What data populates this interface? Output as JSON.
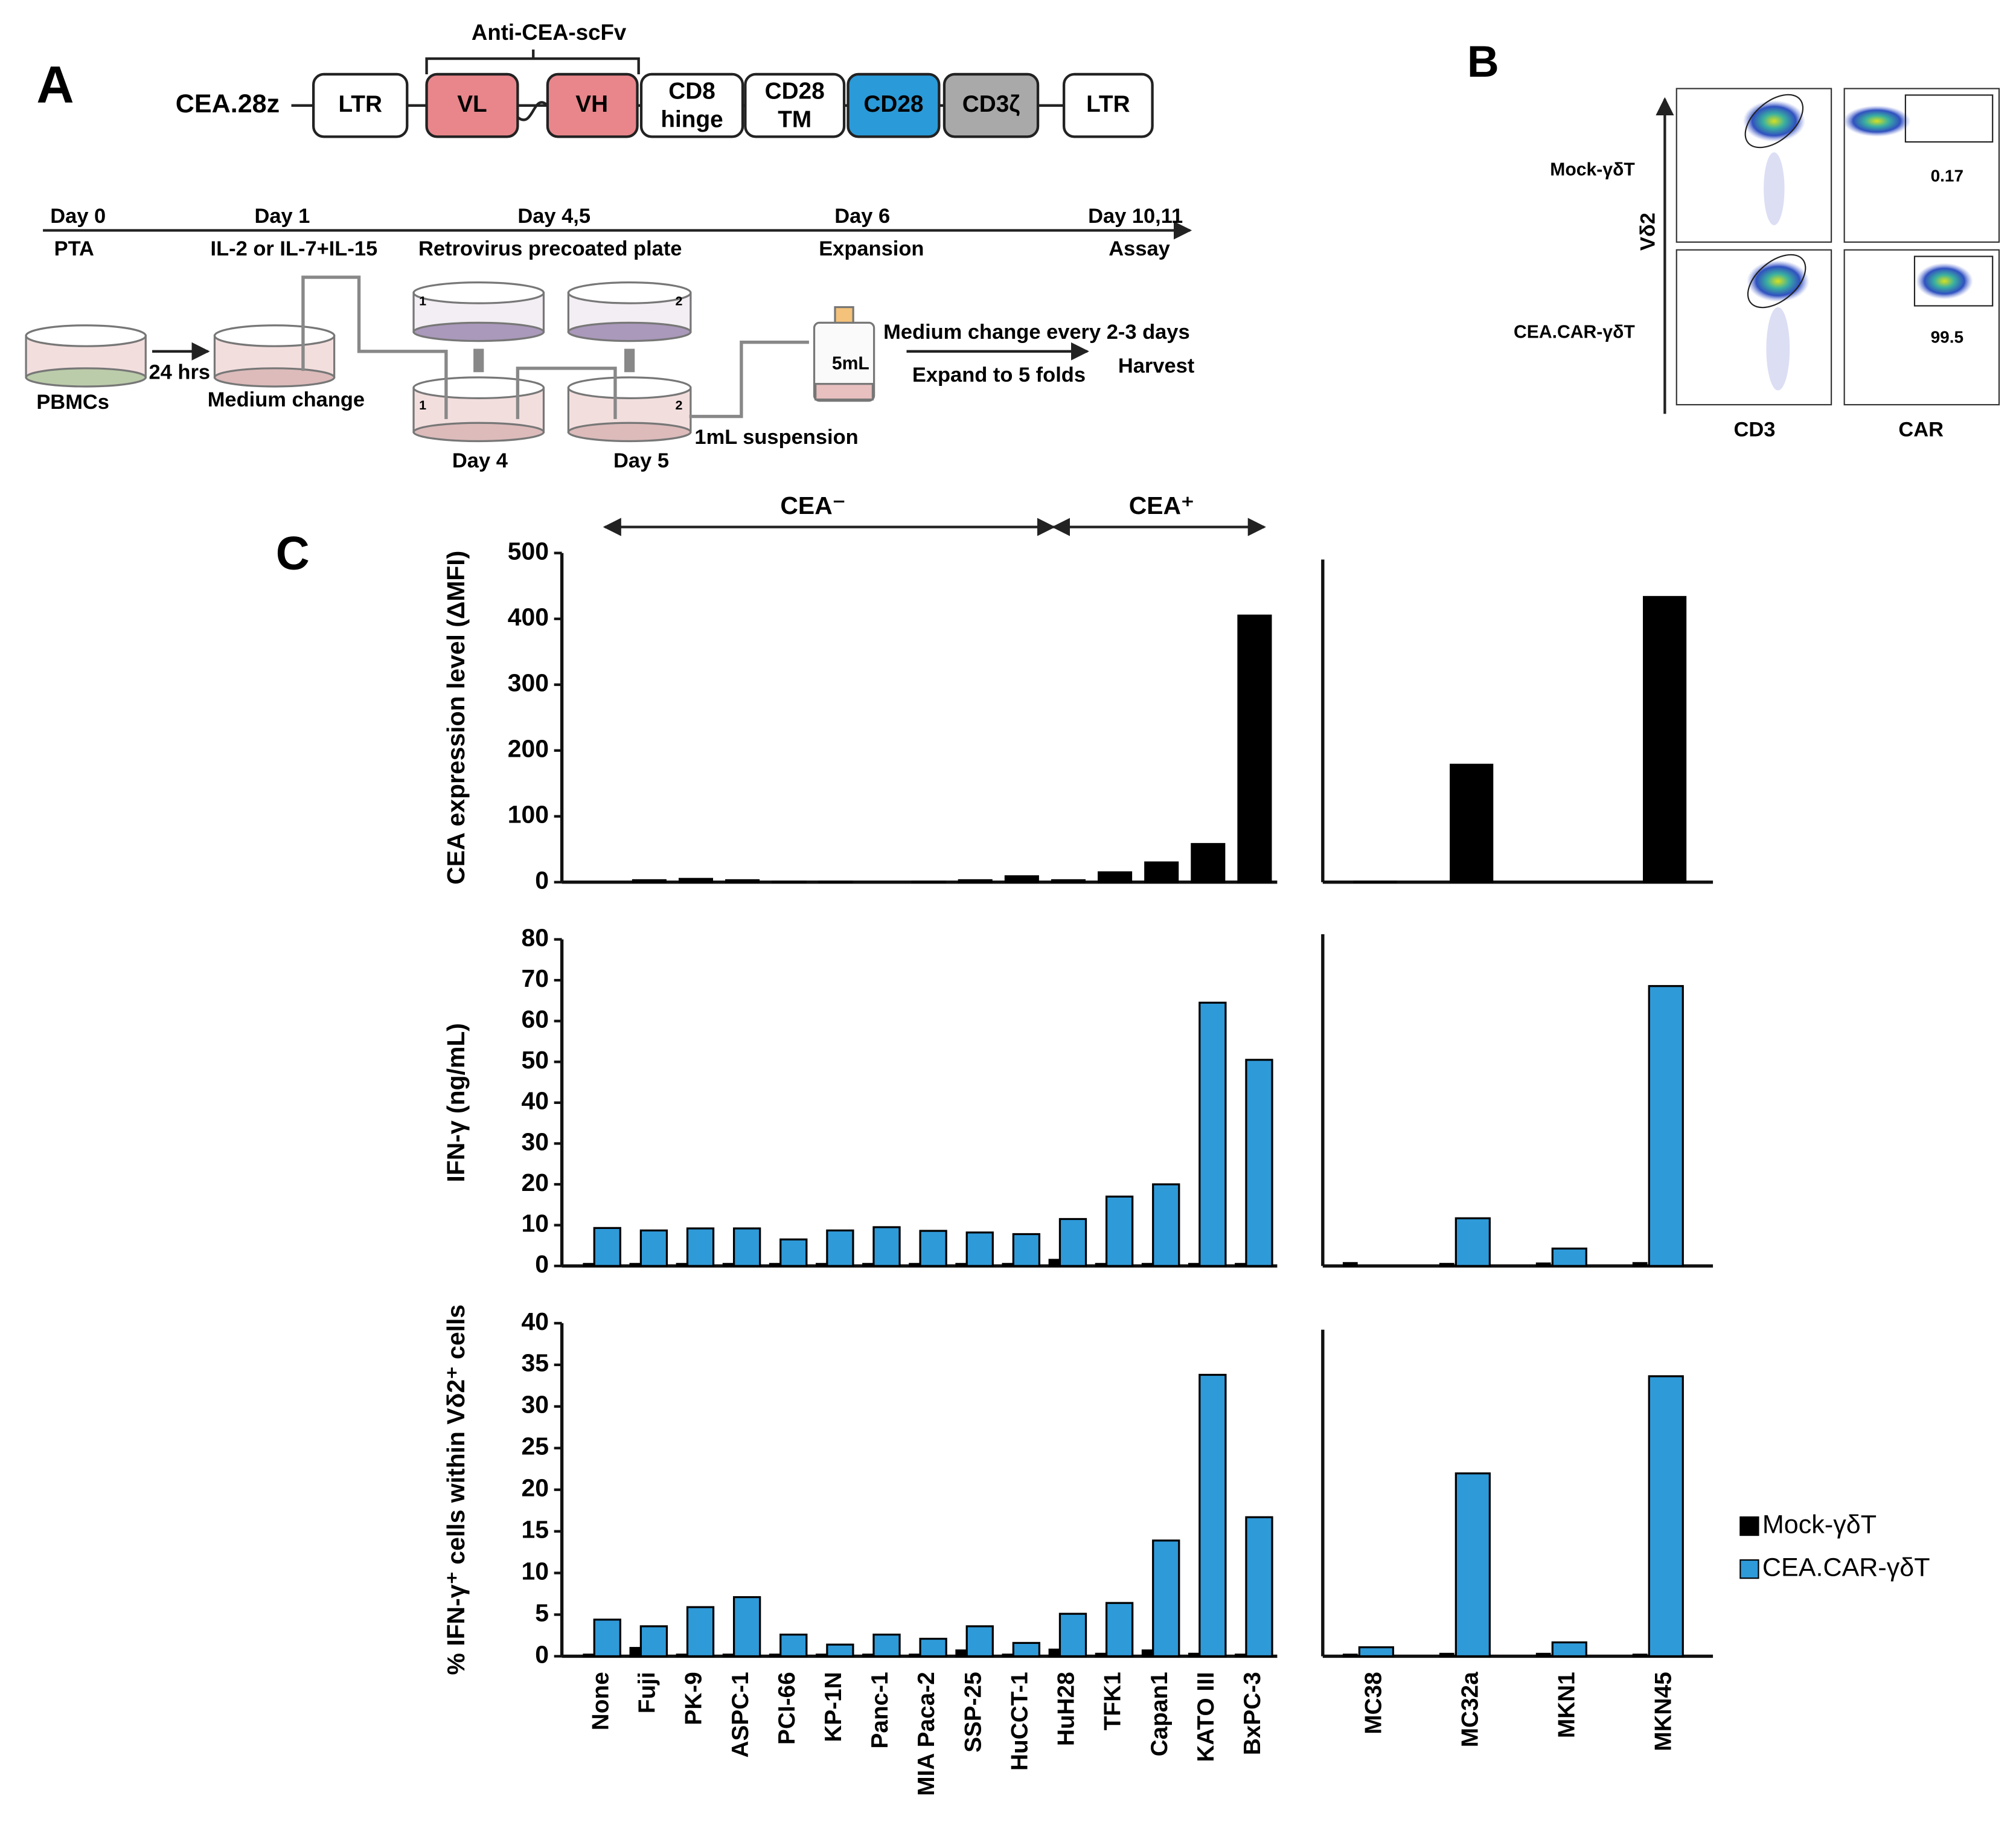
{
  "panel_labels": [
    "A",
    "B",
    "C"
  ],
  "construct": {
    "name": "CEA.28z",
    "scfv_label": "Anti-CEA-scFv",
    "elements": [
      [
        "LTR"
      ],
      [
        "VL"
      ],
      [
        "VH"
      ],
      [
        "CD8",
        "hinge"
      ],
      [
        "CD28",
        "TM"
      ],
      [
        "CD28"
      ],
      [
        "CD3ζ"
      ],
      [
        "LTR"
      ]
    ]
  },
  "timeline": {
    "days": [
      "Day 0",
      "Day 1",
      "Day 4,5",
      "Day 6",
      "Day 10,11"
    ],
    "steps": [
      "PTA",
      "IL-2 or IL-7+IL-15",
      "Retrovirus precoated plate",
      "Expansion",
      "Assay"
    ]
  },
  "protocol": {
    "labels": [
      "PBMCs",
      "24 hrs",
      "Medium change",
      "Day 4",
      "Day 5",
      "1mL suspension",
      "5mL",
      "Medium change every 2-3 days",
      "Expand  to 5 folds",
      "Harvest"
    ],
    "dish_numbers": [
      "1",
      "2",
      "1",
      "2"
    ]
  },
  "flow": {
    "y_label": "Vδ2",
    "x_labels": [
      "CD3",
      "CAR"
    ],
    "rows": [
      "Mock-γδT",
      "CEA.CAR-γδT"
    ],
    "gate_percent": [
      0.17,
      99.5
    ]
  },
  "chart_data": [
    {
      "type": "bar",
      "ylabel": "CEA expression level (ΔMFI)",
      "annotations": [
        "CEA⁻",
        "CEA⁺"
      ],
      "ylim": [
        0,
        500
      ],
      "yticks": [
        0,
        100,
        200,
        300,
        400,
        500
      ],
      "color": "#000000",
      "values": [
        0,
        3,
        5,
        3,
        1,
        1,
        0,
        1,
        3,
        9,
        3,
        15,
        30,
        58,
        405
      ]
    },
    {
      "type": "bar",
      "ylim": [
        0,
        500
      ],
      "color": "#000000",
      "values": [
        1,
        182,
        0,
        442
      ]
    },
    {
      "type": "bar",
      "ylabel": "IFN-γ (ng/mL)",
      "ylim": [
        0,
        80
      ],
      "yticks": [
        0,
        10,
        20,
        30,
        40,
        50,
        60,
        70,
        80
      ],
      "series": [
        {
          "color": "#000000",
          "values": [
            0.5,
            0.5,
            0.5,
            0.5,
            0.5,
            0.5,
            0.5,
            0.5,
            0.5,
            0.5,
            1.5,
            0.5,
            0.5,
            0.5,
            0.5
          ]
        },
        {
          "color": "#2f9ad8",
          "values": [
            9.3,
            8.7,
            9.2,
            9.2,
            6.5,
            8.7,
            9.5,
            8.6,
            8.2,
            7.8,
            11.5,
            17,
            20,
            64.5,
            50.5
          ]
        }
      ]
    },
    {
      "type": "bar",
      "ylim": [
        0,
        80
      ],
      "series": [
        {
          "color": "#000000",
          "values": [
            0.7,
            0.5,
            0.6,
            0.7
          ]
        },
        {
          "color": "#2f9ad8",
          "values": [
            0,
            11.5,
            4.2,
            67.5
          ]
        }
      ]
    },
    {
      "type": "bar",
      "ylabel": "% IFN-γ⁺ cells within Vδ2⁺ cells",
      "ylim": [
        0,
        40
      ],
      "yticks": [
        0,
        5,
        10,
        15,
        20,
        25,
        30,
        35,
        40
      ],
      "categories": [
        "None",
        "Fuji",
        "PK-9",
        "ASPC-1",
        "PCI-66",
        "KP-1N",
        "Panc-1",
        "MIA Paca-2",
        "SSP-25",
        "HuCCT-1",
        "HuH28",
        "TFK1",
        "Capan1",
        "KATO III",
        "BxPC-3"
      ],
      "series": [
        {
          "color": "#000000",
          "values": [
            0.2,
            1,
            0.2,
            0.2,
            0.2,
            0.2,
            0.2,
            0.2,
            0.7,
            0.2,
            0.8,
            0.3,
            0.7,
            0.3,
            0.2
          ]
        },
        {
          "color": "#2f9ad8",
          "values": [
            4.4,
            3.6,
            5.9,
            7.1,
            2.6,
            1.4,
            2.6,
            2.1,
            3.6,
            1.6,
            5.1,
            6.4,
            13.9,
            33.8,
            16.7
          ]
        }
      ]
    },
    {
      "type": "bar",
      "ylim": [
        0,
        40
      ],
      "categories": [
        "MC38",
        "MC32a",
        "MKN1",
        "MKN45"
      ],
      "legend": "right",
      "series": [
        {
          "name": "Mock-γδT",
          "color": "#000000",
          "values": [
            0.2,
            0.3,
            0.3,
            0.2
          ]
        },
        {
          "name": "CEA.CAR-γδT",
          "color": "#2f9ad8",
          "values": [
            1.1,
            22.4,
            1.7,
            34.3
          ]
        }
      ]
    }
  ]
}
